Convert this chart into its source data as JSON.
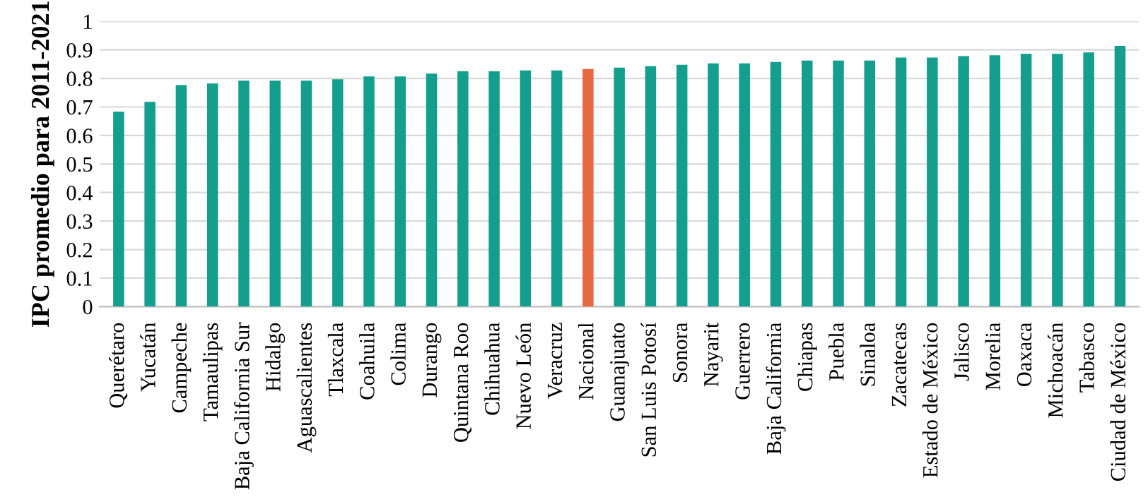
{
  "chart_data": {
    "type": "bar",
    "ylabel": "IPC promedio para 2011-2021",
    "categories": [
      "Querétaro",
      "Yucatán",
      "Campeche",
      "Tamaulipas",
      "Baja California Sur",
      "Hidalgo",
      "Aguascalientes",
      "Tlaxcala",
      "Coahuila",
      "Colima",
      "Durango",
      "Quintana Roo",
      "Chihuahua",
      "Nuevo León",
      "Veracruz",
      "Nacional",
      "Guanajuato",
      "San Luis Potosí",
      "Sonora",
      "Nayarit",
      "Guerrero",
      "Baja California",
      "Chiapas",
      "Puebla",
      "Sinaloa",
      "Zacatecas",
      "Estado de México",
      "Jalisco",
      "Morelia",
      "Oaxaca",
      "Michoacán",
      "Tabasco",
      "Ciudad de México"
    ],
    "values": [
      0.683,
      0.718,
      0.777,
      0.782,
      0.792,
      0.792,
      0.792,
      0.797,
      0.807,
      0.807,
      0.817,
      0.825,
      0.825,
      0.828,
      0.828,
      0.833,
      0.838,
      0.843,
      0.848,
      0.853,
      0.853,
      0.858,
      0.863,
      0.863,
      0.863,
      0.873,
      0.873,
      0.878,
      0.881,
      0.886,
      0.886,
      0.891,
      0.914
    ],
    "colors": [
      "#139e8e",
      "#139e8e",
      "#139e8e",
      "#139e8e",
      "#139e8e",
      "#139e8e",
      "#139e8e",
      "#139e8e",
      "#139e8e",
      "#139e8e",
      "#139e8e",
      "#139e8e",
      "#139e8e",
      "#139e8e",
      "#139e8e",
      "#e8693f",
      "#139e8e",
      "#139e8e",
      "#139e8e",
      "#139e8e",
      "#139e8e",
      "#139e8e",
      "#139e8e",
      "#139e8e",
      "#139e8e",
      "#139e8e",
      "#139e8e",
      "#139e8e",
      "#139e8e",
      "#139e8e",
      "#139e8e",
      "#139e8e",
      "#139e8e"
    ],
    "ylim": [
      0,
      1
    ],
    "yticks": [
      0,
      0.1,
      0.2,
      0.3,
      0.4,
      0.5,
      0.6,
      0.7,
      0.8,
      0.9,
      1
    ],
    "grid": "y"
  }
}
